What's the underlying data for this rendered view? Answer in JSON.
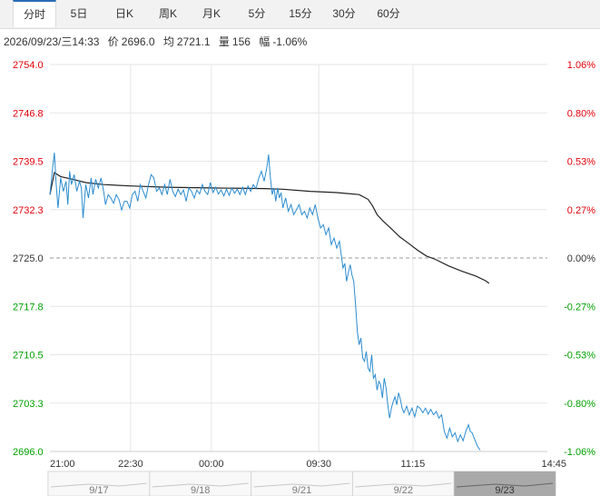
{
  "tabs": [
    "分时",
    "5日",
    "日K",
    "周K",
    "月K",
    "5分",
    "15分",
    "30分",
    "60分"
  ],
  "active_tab": 0,
  "info": {
    "datetime": "2026/09/23/三14:33",
    "price_label": "价",
    "price": "2696.0",
    "avg_label": "均",
    "avg": "2721.1",
    "vol_label": "量",
    "vol": "156",
    "change_label": "幅",
    "change": "-1.06%"
  },
  "colors": {
    "price_line": "#2b8ccf",
    "avg_line": "#222222",
    "up": "#e0000a",
    "down": "#00a000",
    "base": "#333333",
    "grid": "#e6e6e6"
  },
  "chart_data": {
    "type": "line",
    "title": "",
    "reference_price": 2725.0,
    "ylim": [
      2696.0,
      2754.0
    ],
    "y_ticks": [
      "2754.0",
      "2746.8",
      "2739.5",
      "2732.3",
      "2725.0",
      "2717.8",
      "2710.5",
      "2703.3",
      "2696.0"
    ],
    "pct_ticks": [
      "1.06%",
      "0.80%",
      "0.53%",
      "0.27%",
      "0.00%",
      "-0.27%",
      "-0.53%",
      "-0.80%",
      "-1.06%"
    ],
    "x_ticks": [
      "21:00",
      "22:30",
      "00:00",
      "09:30",
      "11:15",
      "14:45"
    ],
    "x_tick_index": [
      0,
      90,
      180,
      300,
      405,
      555
    ],
    "x_count": 556,
    "price_series": {
      "name": "",
      "points": [
        [
          0,
          2734.5
        ],
        [
          3,
          2738.5
        ],
        [
          5,
          2740.8
        ],
        [
          7,
          2736
        ],
        [
          9,
          2732.5
        ],
        [
          12,
          2737
        ],
        [
          15,
          2735
        ],
        [
          18,
          2736.5
        ],
        [
          20,
          2733
        ],
        [
          22,
          2738
        ],
        [
          24,
          2736
        ],
        [
          27,
          2737.5
        ],
        [
          30,
          2735
        ],
        [
          33,
          2736.5
        ],
        [
          35,
          2735.5
        ],
        [
          37,
          2731
        ],
        [
          40,
          2736
        ],
        [
          43,
          2734
        ],
        [
          46,
          2737
        ],
        [
          48,
          2734.5
        ],
        [
          51,
          2736.8
        ],
        [
          54,
          2735.5
        ],
        [
          57,
          2737
        ],
        [
          60,
          2735
        ],
        [
          62,
          2733
        ],
        [
          65,
          2734.5
        ],
        [
          68,
          2734
        ],
        [
          71,
          2733.2
        ],
        [
          74,
          2734.5
        ],
        [
          77,
          2733.8
        ],
        [
          80,
          2732.2
        ],
        [
          83,
          2733.5
        ],
        [
          86,
          2733.5
        ],
        [
          89,
          2732.5
        ],
        [
          92,
          2734.5
        ],
        [
          95,
          2735
        ],
        [
          98,
          2733.5
        ],
        [
          101,
          2736
        ],
        [
          104,
          2735
        ],
        [
          107,
          2734
        ],
        [
          110,
          2736
        ],
        [
          113,
          2737.5
        ],
        [
          116,
          2737
        ],
        [
          119,
          2735
        ],
        [
          122,
          2735.5
        ],
        [
          125,
          2734.5
        ],
        [
          128,
          2736
        ],
        [
          131,
          2734.5
        ],
        [
          134,
          2736.8
        ],
        [
          137,
          2735
        ],
        [
          140,
          2734.2
        ],
        [
          143,
          2735.3
        ],
        [
          146,
          2734.5
        ],
        [
          149,
          2735.2
        ],
        [
          152,
          2733.5
        ],
        [
          155,
          2735.5
        ],
        [
          158,
          2735
        ],
        [
          161,
          2734
        ],
        [
          164,
          2735.2
        ],
        [
          167,
          2734.6
        ],
        [
          170,
          2736
        ],
        [
          173,
          2735
        ],
        [
          176,
          2734.5
        ],
        [
          179,
          2736.3
        ],
        [
          182,
          2734.8
        ],
        [
          185,
          2735.6
        ],
        [
          188,
          2734.6
        ],
        [
          191,
          2735.2
        ],
        [
          194,
          2734.3
        ],
        [
          197,
          2735.3
        ],
        [
          200,
          2734.4
        ],
        [
          203,
          2735.5
        ],
        [
          206,
          2734.7
        ],
        [
          209,
          2735.3
        ],
        [
          212,
          2734.5
        ],
        [
          215,
          2735.6
        ],
        [
          218,
          2734.5
        ],
        [
          221,
          2735.8
        ],
        [
          224,
          2735
        ],
        [
          227,
          2736
        ],
        [
          230,
          2735.4
        ],
        [
          233,
          2737
        ],
        [
          236,
          2738
        ],
        [
          239,
          2736.5
        ],
        [
          242,
          2738.5
        ],
        [
          244,
          2740.5
        ],
        [
          246,
          2737
        ],
        [
          248,
          2734.5
        ],
        [
          250,
          2735.5
        ],
        [
          252,
          2733.5
        ],
        [
          254,
          2735.5
        ],
        [
          256,
          2734
        ],
        [
          258,
          2734.8
        ],
        [
          260,
          2732.5
        ],
        [
          263,
          2734
        ],
        [
          266,
          2732
        ],
        [
          269,
          2733
        ],
        [
          272,
          2731.5
        ],
        [
          275,
          2732.2
        ],
        [
          278,
          2733
        ],
        [
          281,
          2731.5
        ],
        [
          284,
          2732
        ],
        [
          287,
          2731
        ],
        [
          290,
          2732.5
        ],
        [
          293,
          2731.5
        ],
        [
          296,
          2733
        ],
        [
          299,
          2731
        ],
        [
          302,
          2729.5
        ],
        [
          305,
          2730
        ],
        [
          308,
          2728.5
        ],
        [
          311,
          2729.5
        ],
        [
          314,
          2727
        ],
        [
          317,
          2728
        ],
        [
          320,
          2726.5
        ],
        [
          323,
          2727.5
        ],
        [
          325,
          2725.5
        ],
        [
          327,
          2723.5
        ],
        [
          329,
          2724.2
        ],
        [
          331,
          2721.5
        ],
        [
          333,
          2722.8
        ],
        [
          335,
          2724
        ],
        [
          337,
          2722.5
        ],
        [
          339,
          2721.5
        ],
        [
          341,
          2718
        ],
        [
          343,
          2714
        ],
        [
          345,
          2712
        ],
        [
          347,
          2713
        ],
        [
          349,
          2710
        ],
        [
          351,
          2709.5
        ],
        [
          353,
          2711
        ],
        [
          355,
          2708.5
        ],
        [
          357,
          2708
        ],
        [
          359,
          2710.5
        ],
        [
          361,
          2707
        ],
        [
          363,
          2707.5
        ],
        [
          365,
          2705.2
        ],
        [
          367,
          2706.5
        ],
        [
          369,
          2706
        ],
        [
          371,
          2704
        ],
        [
          373,
          2707
        ],
        [
          375,
          2705.5
        ],
        [
          377,
          2703
        ],
        [
          379,
          2701
        ],
        [
          381,
          2702.5
        ],
        [
          383,
          2703.5
        ],
        [
          385,
          2704.2
        ],
        [
          387,
          2703
        ],
        [
          389,
          2704.8
        ],
        [
          391,
          2703.8
        ],
        [
          393,
          2702.5
        ],
        [
          395,
          2701.8
        ],
        [
          398,
          2702.8
        ],
        [
          401,
          2701.5
        ],
        [
          404,
          2702.5
        ],
        [
          407,
          2701.2
        ],
        [
          410,
          2702.8
        ],
        [
          413,
          2702.5
        ],
        [
          416,
          2701.8
        ],
        [
          419,
          2702.5
        ],
        [
          422,
          2701.6
        ],
        [
          425,
          2702.3
        ],
        [
          428,
          2701.5
        ],
        [
          431,
          2702
        ],
        [
          434,
          2701
        ],
        [
          437,
          2701.5
        ],
        [
          440,
          2699
        ],
        [
          443,
          2698
        ],
        [
          446,
          2699.5
        ],
        [
          449,
          2698.2
        ],
        [
          452,
          2698.8
        ],
        [
          455,
          2697.5
        ],
        [
          458,
          2698.5
        ],
        [
          461,
          2697.6
        ],
        [
          464,
          2699
        ],
        [
          467,
          2700
        ],
        [
          469,
          2699
        ],
        [
          471,
          2698.8
        ],
        [
          474,
          2697.8
        ],
        [
          477,
          2696.8
        ],
        [
          480,
          2696.2
        ]
      ]
    },
    "avg_series": {
      "name": "",
      "points": [
        [
          0,
          2734.5
        ],
        [
          5,
          2737.8
        ],
        [
          12,
          2737.2
        ],
        [
          25,
          2736.8
        ],
        [
          40,
          2736.3
        ],
        [
          60,
          2736
        ],
        [
          90,
          2735.8
        ],
        [
          130,
          2735.6
        ],
        [
          180,
          2735.5
        ],
        [
          240,
          2735.4
        ],
        [
          260,
          2735.3
        ],
        [
          290,
          2735
        ],
        [
          320,
          2734.8
        ],
        [
          345,
          2734.5
        ],
        [
          355,
          2733.8
        ],
        [
          360,
          2732.8
        ],
        [
          365,
          2731.5
        ],
        [
          372,
          2730.5
        ],
        [
          380,
          2729.5
        ],
        [
          390,
          2728.2
        ],
        [
          400,
          2727.2
        ],
        [
          410,
          2726.2
        ],
        [
          420,
          2725.3
        ],
        [
          430,
          2724.8
        ],
        [
          445,
          2723.8
        ],
        [
          460,
          2723
        ],
        [
          475,
          2722.3
        ],
        [
          486,
          2721.6
        ],
        [
          490,
          2721.2
        ]
      ]
    }
  },
  "navigator": {
    "dates": [
      "9/17",
      "9/18",
      "9/21",
      "9/22",
      "9/23"
    ],
    "selected": 4
  }
}
